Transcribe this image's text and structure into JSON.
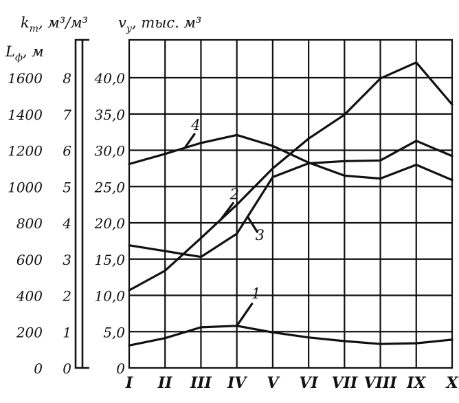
{
  "chart_data": {
    "type": "line",
    "axes": {
      "kt": {
        "label": "k",
        "subscript": "т",
        "unit": ", м³/м³",
        "ticks": [
          "0",
          "1",
          "2",
          "3",
          "4",
          "5",
          "6",
          "7",
          "8"
        ],
        "range": [
          0,
          8
        ]
      },
      "lf": {
        "label": "L",
        "subscript": "ф",
        "unit": ", м",
        "ticks": [
          "0",
          "200",
          "400",
          "600",
          "800",
          "1000",
          "1200",
          "1400",
          "1600"
        ],
        "range": [
          0,
          1600
        ]
      },
      "vy": {
        "label": "v",
        "subscript": "у",
        "unit": ", тыс. м³",
        "ticks": [
          "0",
          "5,0",
          "10,0",
          "15,0",
          "20,0",
          "25,0",
          "30,0",
          "35,0",
          "40,0"
        ],
        "range": [
          0,
          40
        ]
      }
    },
    "x_categories": [
      "I",
      "II",
      "III",
      "IV",
      "V",
      "VI",
      "VII",
      "VIII",
      "IX",
      "X"
    ],
    "series": [
      {
        "name": "1",
        "axis": "vy",
        "values": [
          3.1,
          4.1,
          5.6,
          5.8,
          4.9,
          4.2,
          3.7,
          3.3,
          3.4,
          3.9
        ]
      },
      {
        "name": "2",
        "axis": "vy",
        "values": [
          10.7,
          13.4,
          17.9,
          22.5,
          27.5,
          31.6,
          34.9,
          39.9,
          42.1,
          36.3
        ]
      },
      {
        "name": "3",
        "axis": "vy",
        "values": [
          16.9,
          16.1,
          15.3,
          18.5,
          26.3,
          28.2,
          28.5,
          28.6,
          31.3,
          29.2
        ]
      },
      {
        "name": "4",
        "axis": "vy",
        "values": [
          28.1,
          29.5,
          31.0,
          32.1,
          30.6,
          28.3,
          26.5,
          26.1,
          28.0,
          25.9
        ]
      }
    ],
    "series_labels": [
      "1",
      "2",
      "3",
      "4"
    ],
    "grid": true
  }
}
